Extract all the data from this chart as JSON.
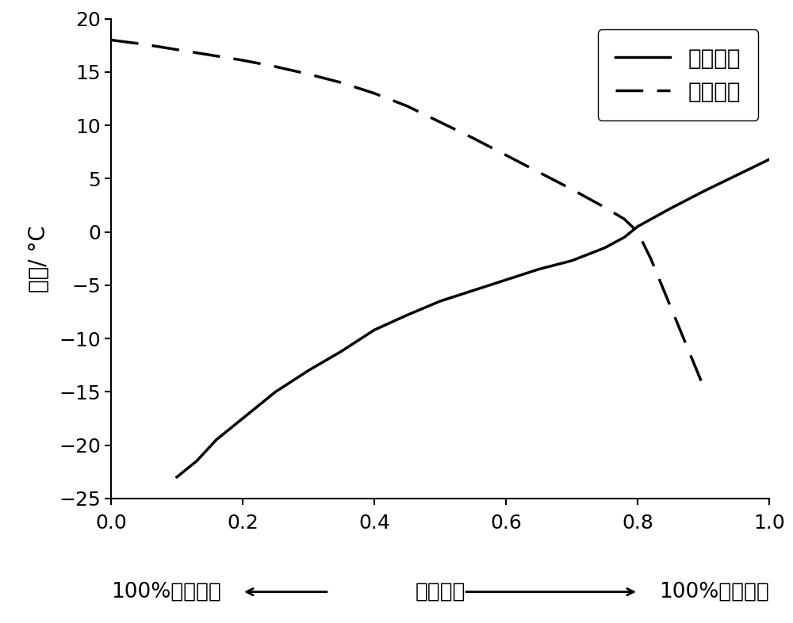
{
  "title": "",
  "ylabel": "温度/ °C",
  "xlabel_center": "质量配比",
  "xlabel_left": "100%正十六烷",
  "xlabel_right": "100%正十四烷",
  "ylim": [
    -25,
    20
  ],
  "xlim": [
    0.0,
    1.0
  ],
  "yticks": [
    20,
    15,
    10,
    5,
    0,
    -5,
    -10,
    -15,
    -20,
    -25
  ],
  "xticks": [
    0.0,
    0.2,
    0.4,
    0.6,
    0.8,
    1.0
  ],
  "legend_solid": "正十四烷",
  "legend_dashed": "正十六烷",
  "solid_x": [
    0.1,
    0.13,
    0.16,
    0.2,
    0.25,
    0.3,
    0.35,
    0.4,
    0.45,
    0.5,
    0.55,
    0.6,
    0.65,
    0.7,
    0.75,
    0.78,
    0.8,
    0.85,
    0.9,
    0.95,
    1.0
  ],
  "solid_y": [
    -23.0,
    -21.5,
    -19.5,
    -17.5,
    -15.0,
    -13.0,
    -11.2,
    -9.2,
    -7.8,
    -6.5,
    -5.5,
    -4.5,
    -3.5,
    -2.7,
    -1.5,
    -0.5,
    0.5,
    2.2,
    3.8,
    5.3,
    6.8
  ],
  "dashed_x": [
    0.0,
    0.05,
    0.1,
    0.15,
    0.2,
    0.25,
    0.3,
    0.35,
    0.4,
    0.45,
    0.5,
    0.55,
    0.6,
    0.65,
    0.7,
    0.75,
    0.78,
    0.8,
    0.82,
    0.85,
    0.88,
    0.9
  ],
  "dashed_y": [
    18.0,
    17.6,
    17.1,
    16.6,
    16.1,
    15.5,
    14.8,
    14.0,
    13.0,
    11.8,
    10.3,
    8.8,
    7.2,
    5.6,
    4.0,
    2.3,
    1.2,
    0.0,
    -2.5,
    -7.0,
    -11.5,
    -14.5
  ],
  "line_color": "#000000",
  "linewidth": 2.5,
  "font_size": 20,
  "tick_font_size": 18,
  "legend_font_size": 20
}
